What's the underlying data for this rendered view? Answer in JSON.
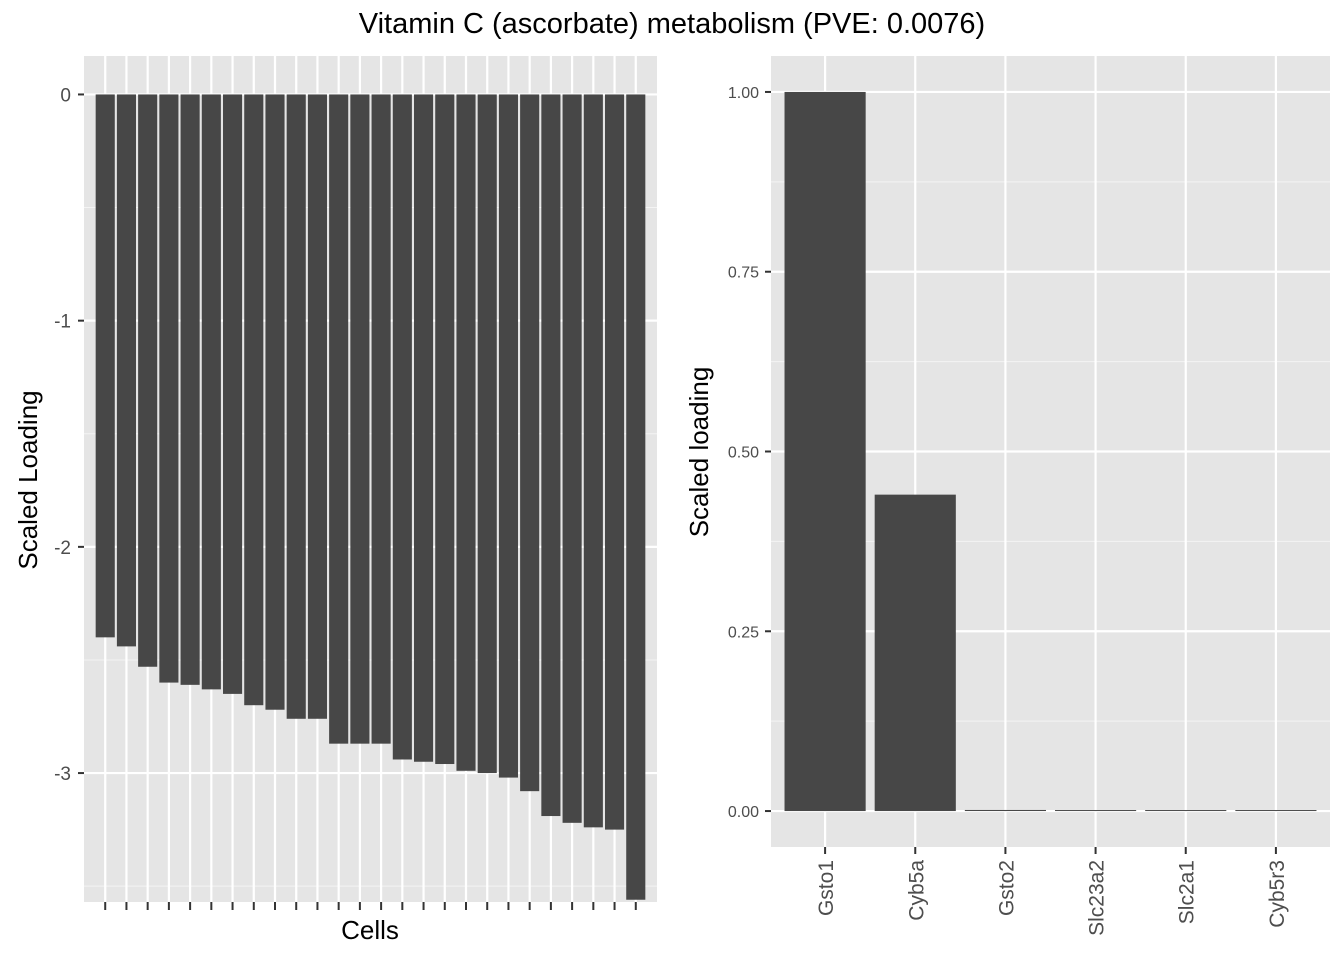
{
  "title": "Vitamin C (ascorbate) metabolism (PVE: 0.0076)",
  "colors": {
    "panel_background": "#e5e5e5",
    "grid_major": "#ffffff",
    "bar_fill": "#474747",
    "tick_text": "#4d4d4d"
  },
  "chart_data": [
    {
      "type": "bar",
      "xlabel": "Cells",
      "ylabel": "Scaled Loading",
      "ylim": [
        -3.57,
        0.17
      ],
      "yticks": [
        0,
        -1,
        -2,
        -3
      ],
      "ytick_labels": [
        "0",
        "-1",
        "-2",
        "-3"
      ],
      "x_tick_labels_shown": false,
      "grid": true,
      "values": [
        -2.4,
        -2.44,
        -2.53,
        -2.6,
        -2.61,
        -2.63,
        -2.65,
        -2.7,
        -2.72,
        -2.76,
        -2.76,
        -2.87,
        -2.87,
        -2.87,
        -2.94,
        -2.95,
        -2.96,
        -2.99,
        -3.0,
        -3.02,
        -3.08,
        -3.19,
        -3.22,
        -3.24,
        -3.25,
        -3.56
      ]
    },
    {
      "type": "bar",
      "xlabel": "",
      "ylabel": "Scaled loading",
      "ylim": [
        -0.05,
        1.05
      ],
      "yticks": [
        0,
        0.25,
        0.5,
        0.75,
        1.0
      ],
      "ytick_labels": [
        "0.00",
        "0.25",
        "0.50",
        "0.75",
        "1.00"
      ],
      "grid": true,
      "categories": [
        "Gsto1",
        "Cyb5a",
        "Gsto2",
        "Slc23a2",
        "Slc2a1",
        "Cyb5r3"
      ],
      "values": [
        1.0,
        0.44,
        0.0015,
        0.0012,
        0.0008,
        0.0004
      ]
    }
  ]
}
